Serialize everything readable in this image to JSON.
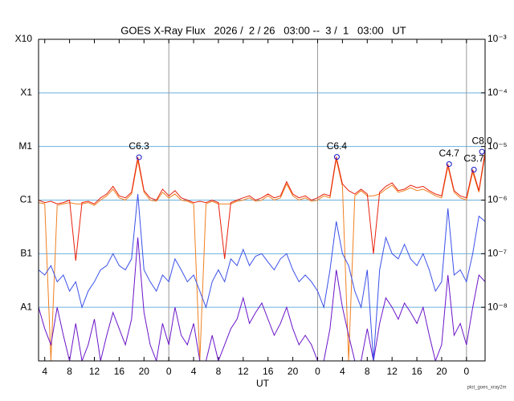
{
  "chart_data": {
    "type": "line",
    "title": "GOES X-Ray Flux   2026 /  2 / 26   03:00 --  3 /  1   03:00   UT",
    "xlabel": "UT",
    "footer": "plot_goes_xray2m",
    "log_y": true,
    "xlim": [
      0,
      72
    ],
    "ylim": [
      1e-09,
      0.001
    ],
    "xticks": [
      {
        "value": 1,
        "label": "4"
      },
      {
        "value": 5,
        "label": "8"
      },
      {
        "value": 9,
        "label": "12"
      },
      {
        "value": 13,
        "label": "16"
      },
      {
        "value": 17,
        "label": "20"
      },
      {
        "value": 21,
        "label": "0"
      },
      {
        "value": 25,
        "label": "4"
      },
      {
        "value": 29,
        "label": "8"
      },
      {
        "value": 33,
        "label": "12"
      },
      {
        "value": 37,
        "label": "16"
      },
      {
        "value": 41,
        "label": "20"
      },
      {
        "value": 45,
        "label": "0"
      },
      {
        "value": 49,
        "label": "4"
      },
      {
        "value": 53,
        "label": "8"
      },
      {
        "value": 57,
        "label": "12"
      },
      {
        "value": 61,
        "label": "16"
      },
      {
        "value": 65,
        "label": "20"
      },
      {
        "value": 69,
        "label": "0"
      }
    ],
    "x_day_lines": [
      21,
      45,
      69
    ],
    "yticks": [
      {
        "value": 0.001,
        "label": "X10"
      },
      {
        "value": 0.0001,
        "label": "X1"
      },
      {
        "value": 1e-05,
        "label": "M1"
      },
      {
        "value": 1e-06,
        "label": "C1"
      },
      {
        "value": 1e-07,
        "label": "B1"
      },
      {
        "value": 1e-08,
        "label": "A1"
      }
    ],
    "y2ticks": [
      {
        "value": 0.001,
        "label": "10⁻³"
      },
      {
        "value": 0.0001,
        "label": "10⁻⁴"
      },
      {
        "value": 1e-05,
        "label": "10⁻⁵"
      },
      {
        "value": 1e-06,
        "label": "10⁻⁶"
      },
      {
        "value": 1e-07,
        "label": "10⁻⁷"
      },
      {
        "value": 1e-08,
        "label": "10⁻⁸"
      }
    ],
    "grid_color": "#6ab0de",
    "x": [
      0,
      1,
      2,
      3,
      4,
      5,
      6,
      7,
      8,
      9,
      10,
      11,
      12,
      13,
      14,
      15,
      16,
      17,
      18,
      19,
      20,
      21,
      22,
      23,
      24,
      25,
      26,
      27,
      28,
      29,
      30,
      31,
      32,
      33,
      34,
      35,
      36,
      37,
      38,
      39,
      40,
      41,
      42,
      43,
      44,
      45,
      46,
      47,
      48,
      49,
      50,
      51,
      52,
      53,
      54,
      55,
      56,
      57,
      58,
      59,
      60,
      61,
      62,
      63,
      64,
      65,
      66,
      67,
      68,
      69,
      70,
      71,
      72
    ],
    "series": [
      {
        "color": "#f08020",
        "values": [
          9e-07,
          8.5e-07,
          1e-09,
          8e-07,
          8.5e-07,
          9e-07,
          8.5e-07,
          8.5e-07,
          9e-07,
          8e-07,
          1e-06,
          1.2e-06,
          1.6e-06,
          1.1e-06,
          1e-06,
          1.3e-06,
          5.5e-06,
          1.4e-06,
          1e-06,
          9.5e-07,
          1.4e-06,
          1.1e-06,
          1.3e-06,
          1e-06,
          9.5e-07,
          8.5e-07,
          1e-09,
          8.5e-07,
          9.5e-07,
          8.5e-07,
          8.5e-07,
          8.5e-07,
          9.5e-07,
          1e-06,
          1.1e-06,
          9.5e-07,
          1e-06,
          1.2e-06,
          1e-06,
          1.1e-06,
          2e-06,
          1.2e-06,
          1e-06,
          1.1e-06,
          9.5e-07,
          1e-06,
          1.2e-06,
          1.1e-06,
          5.8e-06,
          1.8e-06,
          1e-09,
          1.2e-06,
          1.5e-06,
          1.2e-06,
          1.2e-06,
          1.3e-06,
          1.6e-06,
          1.9e-06,
          1.4e-06,
          1.5e-06,
          1.7e-06,
          1.5e-06,
          1.6e-06,
          1.4e-06,
          1.2e-06,
          1.1e-06,
          4.2e-06,
          1.4e-06,
          1.1e-06,
          1e-06,
          3.3e-06,
          1.4e-06,
          7e-06
        ]
      },
      {
        "color": "#e8200c",
        "values": [
          1e-06,
          9e-07,
          9.5e-07,
          8.5e-07,
          9e-07,
          1e-06,
          7.4e-08,
          9e-07,
          9.5e-07,
          8.5e-07,
          1.1e-06,
          1.3e-06,
          1.8e-06,
          1.2e-06,
          1.1e-06,
          1.4e-06,
          6.3e-06,
          1.5e-06,
          1.1e-06,
          1e-06,
          1.6e-06,
          1.2e-06,
          1.5e-06,
          1.1e-06,
          1e-06,
          9e-07,
          9.5e-07,
          9e-07,
          1e-06,
          9e-07,
          8e-08,
          9e-07,
          1e-06,
          1.1e-06,
          1.2e-06,
          1e-06,
          1.1e-06,
          1.3e-06,
          1.1e-06,
          1.2e-06,
          2.2e-06,
          1.3e-06,
          1.1e-06,
          1.2e-06,
          1e-06,
          1.1e-06,
          1.3e-06,
          1.2e-06,
          6.4e-06,
          2e-06,
          1.5e-06,
          1.3e-06,
          1.6e-06,
          1.3e-06,
          1e-07,
          1.4e-06,
          1.8e-06,
          2.1e-06,
          1.5e-06,
          1.6e-06,
          1.9e-06,
          1.7e-06,
          1.8e-06,
          1.5e-06,
          1.3e-06,
          1.2e-06,
          4.7e-06,
          1.5e-06,
          1.2e-06,
          1.1e-06,
          3.7e-06,
          1.5e-06,
          8e-06
        ]
      },
      {
        "color": "#6a14c8",
        "values": [
          1e-08,
          4e-09,
          2e-09,
          1e-08,
          3e-09,
          1e-09,
          5e-09,
          1e-09,
          2e-09,
          6e-09,
          1e-09,
          3e-09,
          8e-09,
          4e-09,
          2e-09,
          6e-09,
          2e-07,
          8e-09,
          2e-09,
          1e-09,
          5e-09,
          2e-09,
          1e-08,
          3e-09,
          2e-09,
          5e-09,
          1e-09,
          1e-09,
          3e-09,
          1e-09,
          2e-09,
          4e-09,
          6e-09,
          1.5e-08,
          5e-09,
          8e-09,
          1.2e-08,
          6e-09,
          3e-09,
          5e-09,
          1e-08,
          4e-09,
          2e-09,
          3e-09,
          2e-09,
          1e-09,
          1e-09,
          4e-09,
          5e-08,
          1e-08,
          3e-09,
          1e-09,
          1e-09,
          4e-09,
          1e-09,
          5e-09,
          1.5e-08,
          1e-08,
          6e-09,
          1.2e-08,
          8e-09,
          5e-09,
          1e-08,
          3e-09,
          1e-09,
          2e-09,
          4e-08,
          3e-09,
          5e-09,
          2e-09,
          1e-08,
          4e-08,
          3e-08
        ]
      },
      {
        "color": "#3a50e8",
        "values": [
          5e-08,
          4e-08,
          6e-08,
          3e-08,
          4e-08,
          2e-08,
          3e-08,
          1e-08,
          2e-08,
          3e-08,
          5e-08,
          6e-08,
          1e-07,
          6e-08,
          5e-08,
          8e-08,
          1.3e-06,
          5e-08,
          3e-08,
          2e-08,
          4e-08,
          3e-08,
          8e-08,
          5e-08,
          3e-08,
          4e-08,
          2e-08,
          1e-08,
          3e-08,
          5e-08,
          3e-08,
          8e-08,
          6e-08,
          1.2e-07,
          6e-08,
          9e-08,
          1e-07,
          7e-08,
          5e-08,
          8e-08,
          1e-07,
          5e-08,
          3e-08,
          4e-08,
          3e-08,
          2e-08,
          1e-08,
          5e-08,
          4e-07,
          1e-07,
          6e-08,
          2e-08,
          1e-08,
          5e-08,
          1e-09,
          5e-08,
          2e-07,
          1e-07,
          8e-08,
          1.5e-07,
          8e-08,
          6e-08,
          1e-07,
          5e-08,
          2e-08,
          3e-08,
          7e-07,
          4e-08,
          5e-08,
          3e-08,
          1e-07,
          5e-07,
          4e-07
        ]
      }
    ],
    "annotations": [
      {
        "x": 16.2,
        "value": 6.3e-06,
        "label": "C6.3"
      },
      {
        "x": 48.1,
        "value": 6.4e-06,
        "label": "C6.4"
      },
      {
        "x": 66.2,
        "value": 4.7e-06,
        "label": "C4.7"
      },
      {
        "x": 70.2,
        "value": 3.7e-06,
        "label": "C3.7"
      },
      {
        "x": 71.5,
        "value": 8e-06,
        "label": "C8.0"
      }
    ]
  }
}
